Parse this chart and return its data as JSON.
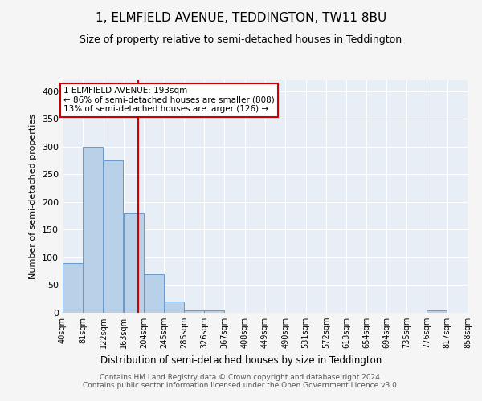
{
  "title": "1, ELMFIELD AVENUE, TEDDINGTON, TW11 8BU",
  "subtitle": "Size of property relative to semi-detached houses in Teddington",
  "xlabel": "Distribution of semi-detached houses by size in Teddington",
  "ylabel": "Number of semi-detached properties",
  "footer_line1": "Contains HM Land Registry data © Crown copyright and database right 2024.",
  "footer_line2": "Contains public sector information licensed under the Open Government Licence v3.0.",
  "bin_edges": [
    40,
    81,
    122,
    163,
    204,
    245,
    285,
    326,
    367,
    408,
    449,
    490,
    531,
    572,
    613,
    654,
    694,
    735,
    776,
    817,
    858
  ],
  "bin_labels": [
    "40sqm",
    "81sqm",
    "122sqm",
    "163sqm",
    "204sqm",
    "245sqm",
    "285sqm",
    "326sqm",
    "367sqm",
    "408sqm",
    "449sqm",
    "490sqm",
    "531sqm",
    "572sqm",
    "613sqm",
    "654sqm",
    "694sqm",
    "735sqm",
    "776sqm",
    "817sqm",
    "858sqm"
  ],
  "bar_heights": [
    90,
    300,
    275,
    180,
    70,
    20,
    5,
    5,
    0,
    0,
    0,
    0,
    0,
    0,
    0,
    0,
    0,
    0,
    4,
    0,
    0
  ],
  "bar_color": "#b8d0e8",
  "bar_edgecolor": "#6699cc",
  "property_size": 193,
  "vline_color": "#cc0000",
  "annotation_text_line1": "1 ELMFIELD AVENUE: 193sqm",
  "annotation_text_line2": "← 86% of semi-detached houses are smaller (808)",
  "annotation_text_line3": "13% of semi-detached houses are larger (126) →",
  "annotation_box_color": "#cc0000",
  "annotation_bg": "#ffffff",
  "ylim": [
    0,
    420
  ],
  "yticks": [
    0,
    50,
    100,
    150,
    200,
    250,
    300,
    350,
    400
  ],
  "bg_color": "#e8eef5",
  "grid_color": "#ffffff",
  "fig_bg_color": "#f5f5f5",
  "title_fontsize": 11,
  "subtitle_fontsize": 9
}
